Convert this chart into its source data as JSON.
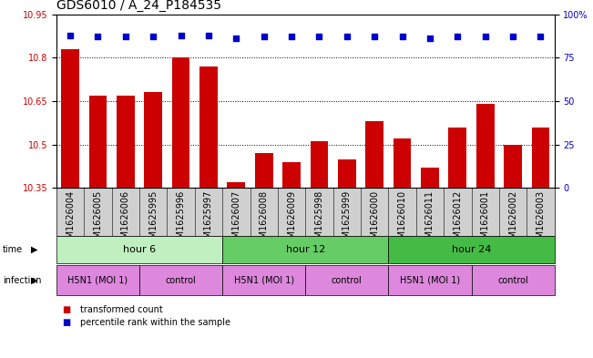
{
  "title": "GDS6010 / A_24_P184535",
  "samples": [
    "GSM1626004",
    "GSM1626005",
    "GSM1626006",
    "GSM1625995",
    "GSM1625996",
    "GSM1625997",
    "GSM1626007",
    "GSM1626008",
    "GSM1626009",
    "GSM1625998",
    "GSM1625999",
    "GSM1626000",
    "GSM1626010",
    "GSM1626011",
    "GSM1626012",
    "GSM1626001",
    "GSM1626002",
    "GSM1626003"
  ],
  "bar_values": [
    10.83,
    10.67,
    10.67,
    10.68,
    10.8,
    10.77,
    10.37,
    10.47,
    10.44,
    10.51,
    10.45,
    10.58,
    10.52,
    10.42,
    10.56,
    10.64,
    10.5,
    10.56
  ],
  "percentile_values": [
    88,
    87,
    87,
    87,
    88,
    88,
    86,
    87,
    87,
    87,
    87,
    87,
    87,
    86,
    87,
    87,
    87,
    87
  ],
  "ylim_left": [
    10.35,
    10.95
  ],
  "ylim_right": [
    0,
    100
  ],
  "yticks_left": [
    10.35,
    10.5,
    10.65,
    10.8,
    10.95
  ],
  "yticks_right": [
    0,
    25,
    50,
    75,
    100
  ],
  "ytick_labels_right": [
    "0",
    "25",
    "50",
    "75",
    "100%"
  ],
  "bar_color": "#cc0000",
  "dot_color": "#0000cc",
  "bar_bottom": 10.35,
  "time_group_defs": [
    {
      "label": "hour 6",
      "start": 0,
      "end": 5,
      "color": "#c0f0c0"
    },
    {
      "label": "hour 12",
      "start": 6,
      "end": 11,
      "color": "#66cc66"
    },
    {
      "label": "hour 24",
      "start": 12,
      "end": 17,
      "color": "#44bb44"
    }
  ],
  "inf_group_defs": [
    {
      "label": "H5N1 (MOI 1)",
      "start": 0,
      "end": 2,
      "color": "#dd88dd"
    },
    {
      "label": "control",
      "start": 3,
      "end": 5,
      "color": "#dd88dd"
    },
    {
      "label": "H5N1 (MOI 1)",
      "start": 6,
      "end": 8,
      "color": "#dd88dd"
    },
    {
      "label": "control",
      "start": 9,
      "end": 11,
      "color": "#dd88dd"
    },
    {
      "label": "H5N1 (MOI 1)",
      "start": 12,
      "end": 14,
      "color": "#dd88dd"
    },
    {
      "label": "control",
      "start": 15,
      "end": 17,
      "color": "#dd88dd"
    }
  ],
  "legend_bar_label": "transformed count",
  "legend_dot_label": "percentile rank within the sample",
  "sample_col_color": "#d0d0d0",
  "title_fontsize": 10,
  "tick_fontsize": 7,
  "bar_fontsize": 7,
  "ann_fontsize": 8
}
